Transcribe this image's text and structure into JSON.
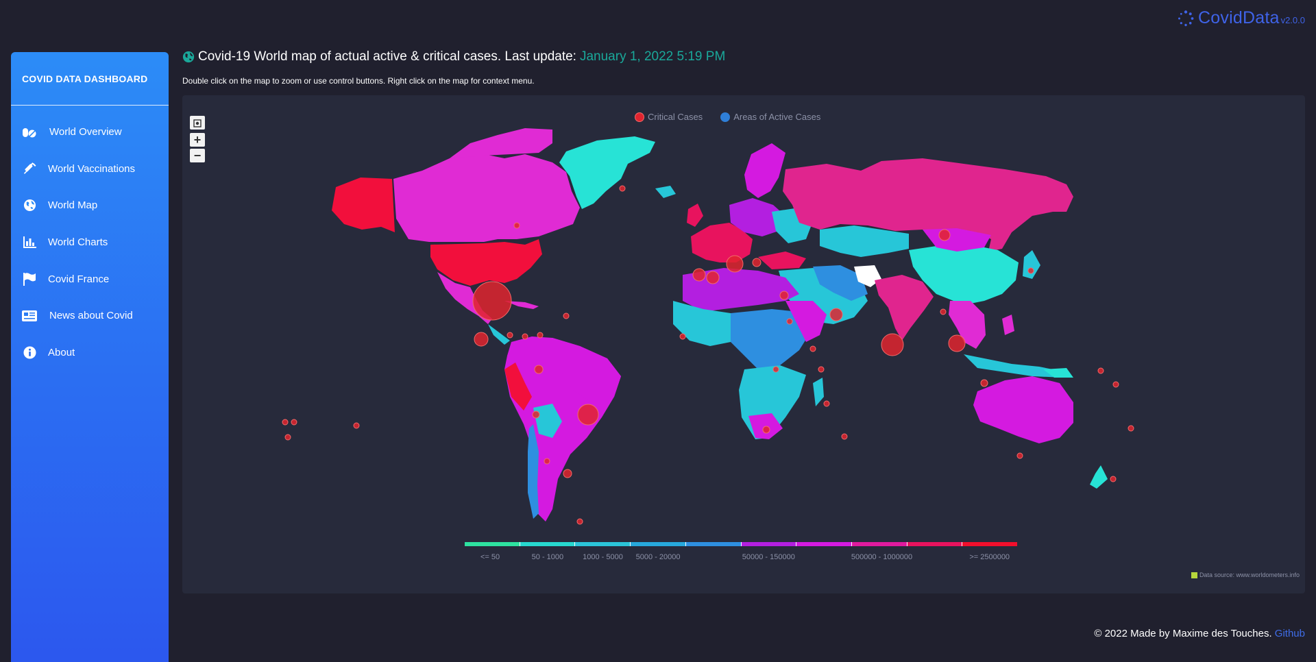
{
  "brand": {
    "name": "CovidData",
    "version": "v2.0.0"
  },
  "sidebar": {
    "title": "COVID DATA DASHBOARD",
    "items": [
      {
        "label": "World Overview",
        "icon": "pills-icon"
      },
      {
        "label": "World Vaccinations",
        "icon": "syringe-icon"
      },
      {
        "label": "World Map",
        "icon": "globe-icon"
      },
      {
        "label": "World Charts",
        "icon": "bar-chart-icon"
      },
      {
        "label": "Covid France",
        "icon": "flag-icon"
      },
      {
        "label": "News about Covid",
        "icon": "newspaper-icon"
      },
      {
        "label": "About",
        "icon": "info-icon"
      }
    ]
  },
  "header": {
    "title": "Covid-19 World map of actual active & critical cases. Last update:",
    "update_date": "January 1, 2022 5:19 PM",
    "subtitle": "Double click on the map to zoom or use control buttons. Right click on the map for context menu."
  },
  "map": {
    "zoom_in": "+",
    "zoom_out": "−",
    "legend": [
      {
        "label": "Critical Cases",
        "color": "#e0242f"
      },
      {
        "label": "Areas of Active Cases",
        "color": "#2f7fd8"
      }
    ],
    "scale_colors": [
      "#2ee2a0",
      "#27d8cf",
      "#2bc4d8",
      "#27a8dc",
      "#2e8fe0",
      "#b31fe0",
      "#d41ae0",
      "#e01a9e",
      "#e8135e",
      "#f20f2c"
    ],
    "scale_labels": [
      "<= 50",
      "50 - 1000",
      "1000 - 5000",
      "5000 - 20000",
      "50000 - 150000",
      "500000 - 1000000",
      ">= 2500000"
    ],
    "source": "Data source: www.worldometers.info"
  },
  "footer": {
    "text": "© 2022 Made by Maxime des Touches.",
    "link": "Github"
  }
}
